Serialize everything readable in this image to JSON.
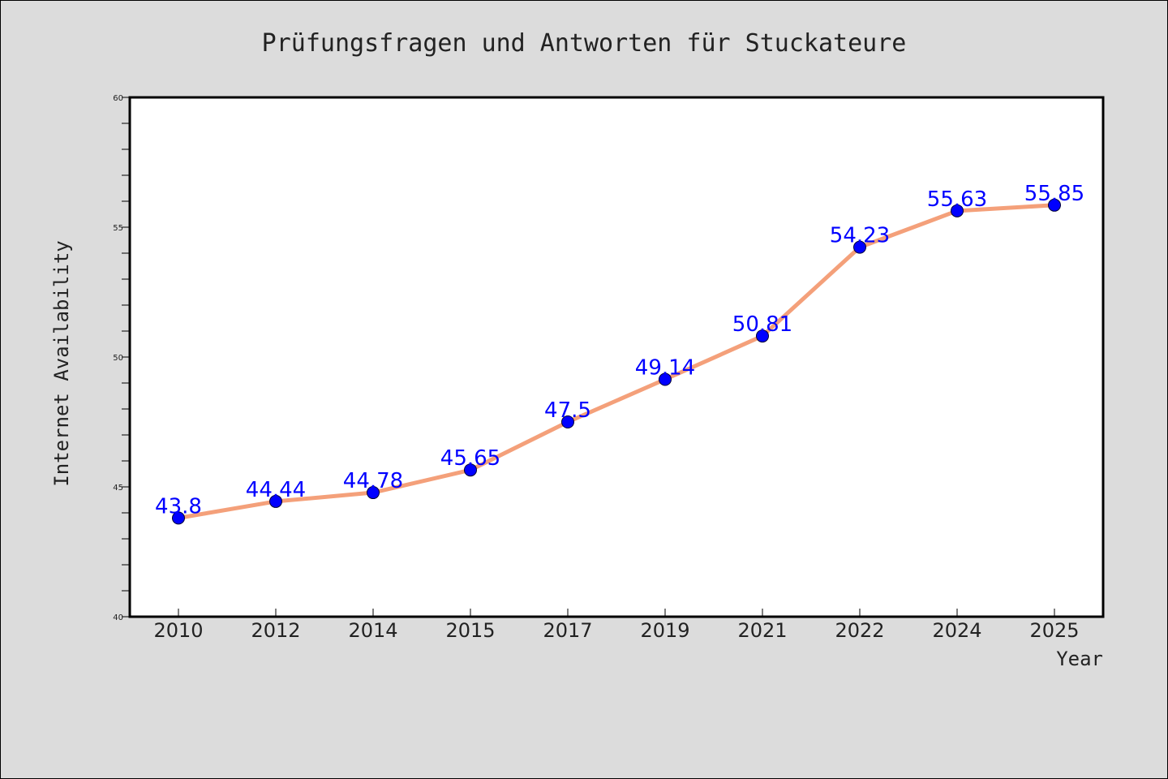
{
  "chart_data": {
    "type": "line",
    "title": "Prüfungsfragen und Antworten für Stuckateure",
    "xlabel": "Year",
    "ylabel": "Internet Availability",
    "categories": [
      "2010",
      "2012",
      "2014",
      "2015",
      "2017",
      "2019",
      "2021",
      "2022",
      "2024",
      "2025"
    ],
    "series": [
      {
        "values": [
          43.8,
          44.44,
          44.78,
          45.65,
          47.5,
          49.14,
          50.81,
          54.23,
          55.63,
          55.85
        ],
        "labels": [
          "43.8",
          "44.44",
          "44.78",
          "45.65",
          "47.5",
          "49.14",
          "50.81",
          "54.23",
          "55.63",
          "55.85"
        ]
      }
    ],
    "ylim": [
      40,
      60
    ],
    "yticks": [
      "40",
      "45",
      "50",
      "55",
      "60"
    ],
    "grid": false,
    "colors": {
      "line": "#f4a07a",
      "marker": "#0000ff",
      "data_label": "#0000ff",
      "plot_bg": "#ffffff",
      "figure_bg": "#dcdcdc"
    }
  }
}
